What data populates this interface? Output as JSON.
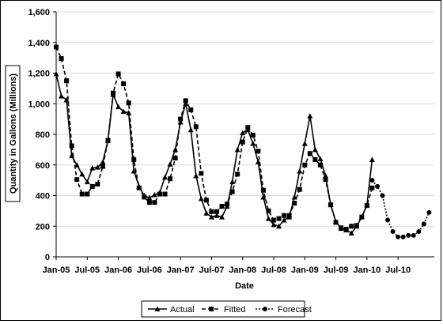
{
  "chart_data": {
    "type": "line",
    "title": "",
    "xlabel": "Date",
    "ylabel": "Quantity in Gallons (Millions)",
    "ylim": [
      0,
      1600
    ],
    "yticks": [
      "0",
      "200",
      "400",
      "600",
      "800",
      "1,000",
      "1,200",
      "1,400",
      "1,600"
    ],
    "ytick_values": [
      0,
      200,
      400,
      600,
      800,
      1000,
      1200,
      1400,
      1600
    ],
    "x_tick_labels": [
      "Jan-05",
      "Jul-05",
      "Jan-06",
      "Jul-06",
      "Jan-07",
      "Jul-07",
      "Jan-08",
      "Jul-08",
      "Jan-09",
      "Jul-09",
      "Jan-10",
      "Jul-10"
    ],
    "x_start_month": "Jan-05",
    "grid": "horizontal",
    "legend_position": "bottom",
    "series": [
      {
        "name": "Actual",
        "style": "solid",
        "marker": "triangle",
        "start_month": "Jan-05",
        "values": [
          1195,
          1050,
          1025,
          660,
          600,
          540,
          490,
          580,
          585,
          620,
          760,
          1060,
          980,
          950,
          940,
          560,
          460,
          400,
          385,
          405,
          420,
          520,
          605,
          700,
          880,
          1000,
          830,
          530,
          380,
          285,
          260,
          270,
          260,
          330,
          490,
          700,
          810,
          830,
          740,
          620,
          390,
          250,
          210,
          200,
          240,
          260,
          390,
          560,
          740,
          920,
          700,
          640,
          530,
          340,
          230,
          185,
          175,
          155,
          200,
          260,
          340,
          635
        ]
      },
      {
        "name": "Fitted",
        "style": "dashed",
        "marker": "square",
        "start_month": "Jan-05",
        "values": [
          1370,
          1295,
          1150,
          725,
          505,
          410,
          410,
          460,
          475,
          590,
          760,
          1070,
          1195,
          1130,
          1005,
          635,
          450,
          390,
          355,
          355,
          410,
          410,
          510,
          645,
          900,
          1020,
          960,
          850,
          545,
          370,
          295,
          295,
          330,
          345,
          425,
          540,
          750,
          845,
          795,
          690,
          435,
          300,
          240,
          250,
          270,
          270,
          350,
          440,
          600,
          675,
          635,
          600,
          505,
          340,
          225,
          190,
          180,
          200,
          205,
          260,
          335,
          450
        ]
      },
      {
        "name": "Forecast",
        "style": "dotted",
        "marker": "circle",
        "start_month": "Feb-10",
        "values": [
          500,
          460,
          400,
          240,
          165,
          130,
          130,
          140,
          140,
          165,
          215,
          290
        ]
      }
    ]
  }
}
